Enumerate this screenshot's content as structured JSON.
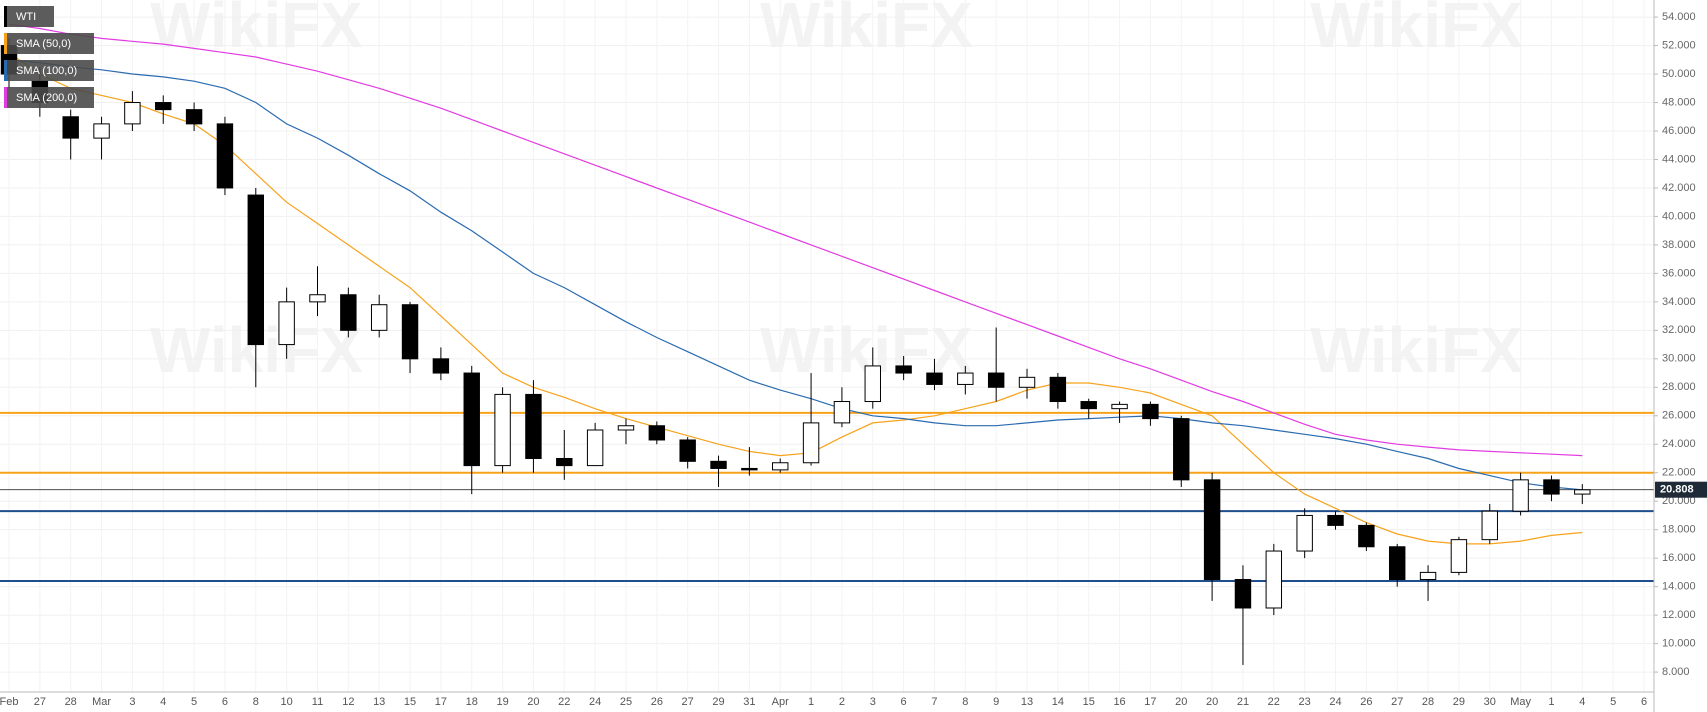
{
  "chart_data": {
    "type": "candlestick",
    "watermark": "WikiFX",
    "categories": [
      "Feb",
      "27",
      "28",
      "Mar",
      "3",
      "4",
      "5",
      "6",
      "8",
      "10",
      "11",
      "12",
      "13",
      "15",
      "17",
      "18",
      "19",
      "20",
      "22",
      "24",
      "25",
      "26",
      "27",
      "29",
      "31",
      "Apr",
      "1",
      "2",
      "3",
      "6",
      "7",
      "8",
      "9",
      "13",
      "14",
      "15",
      "16",
      "17",
      "20",
      "20",
      "21",
      "22",
      "23",
      "24",
      "26",
      "27",
      "28",
      "29",
      "30",
      "May",
      "1",
      "4",
      "5",
      "6"
    ],
    "ohlc": {
      "name": "WTI",
      "color_up": "#ffffff",
      "color_down": "#000000",
      "open": [
        52,
        49.5,
        47,
        45.5,
        46.5,
        48,
        47.5,
        46.5,
        41.5,
        31,
        34,
        34.5,
        32,
        33.8,
        30,
        29,
        22.5,
        27.5,
        23,
        22.5,
        25,
        25.3,
        24.3,
        22.8,
        22.3,
        22.2,
        22.7,
        25.5,
        27,
        29.5,
        29,
        28.2,
        29,
        28,
        28.7,
        27,
        26.5,
        26.8,
        25.8,
        21.5,
        14.5,
        12.5,
        16.5,
        19,
        18.3,
        16.8,
        14.5,
        15,
        17.3,
        19.3,
        21.5,
        20.5,
        null,
        null
      ],
      "high": [
        52.5,
        50.5,
        47.5,
        47,
        48.8,
        48.5,
        48,
        47,
        42,
        35,
        36.5,
        35,
        34.5,
        34,
        30.8,
        29.5,
        28,
        28.5,
        25,
        25.5,
        25.8,
        25.6,
        24.5,
        23.2,
        23.8,
        23,
        29,
        28,
        30.8,
        30.2,
        30,
        29.5,
        32.2,
        29.3,
        29,
        27.2,
        27,
        27,
        26,
        22,
        15.5,
        17,
        19.5,
        19.3,
        18.5,
        17,
        15.5,
        17.5,
        19.8,
        22,
        21.8,
        21.2,
        null,
        null
      ],
      "low": [
        49,
        47,
        44,
        44,
        46,
        46.5,
        46,
        41.5,
        28,
        30,
        33,
        31.5,
        31.5,
        29,
        28.5,
        20.5,
        22,
        22,
        21.5,
        22.5,
        24,
        24,
        22.3,
        21,
        21.8,
        22,
        22.5,
        25.2,
        26.5,
        28.5,
        27.8,
        27.5,
        27,
        27.2,
        26.5,
        25.8,
        25.5,
        25.3,
        21,
        13,
        8.5,
        12,
        16,
        18,
        16.5,
        14,
        13,
        14.8,
        17,
        19,
        20,
        19.8,
        null,
        null
      ],
      "close": [
        50,
        48,
        45.5,
        46.5,
        48,
        47.5,
        46.5,
        42,
        31,
        34,
        34.5,
        32,
        33.8,
        30,
        29,
        22.5,
        27.5,
        23,
        22.5,
        25,
        25.3,
        24.3,
        22.8,
        22.3,
        22.2,
        22.7,
        25.5,
        27,
        29.5,
        29,
        28.2,
        29,
        28,
        28.7,
        27,
        26.5,
        26.8,
        25.8,
        21.5,
        14.5,
        12.5,
        16.5,
        19,
        18.3,
        16.8,
        14.5,
        15,
        17.3,
        19.3,
        21.5,
        20.5,
        20.8,
        null,
        null
      ]
    },
    "series": [
      {
        "name": "SMA (50,0)",
        "color": "#f7a21b",
        "values": [
          51.5,
          50,
          49,
          48.5,
          48,
          47.2,
          46.5,
          45,
          43,
          41,
          39.5,
          38,
          36.5,
          35,
          33,
          31,
          29,
          28,
          27.3,
          26.5,
          25.8,
          25.2,
          24.6,
          24,
          23.5,
          23.2,
          23.4,
          24.5,
          25.5,
          25.7,
          26,
          26.5,
          27,
          27.8,
          28.3,
          28.3,
          28,
          27.6,
          26.8,
          26,
          24,
          22,
          20.5,
          19.5,
          18.5,
          17.7,
          17.2,
          17,
          17,
          17.2,
          17.6,
          17.8,
          null,
          null
        ]
      },
      {
        "name": "SMA (100,0)",
        "color": "#2a6bb0",
        "values": [
          51,
          50.8,
          50.5,
          50.3,
          50,
          49.8,
          49.5,
          49,
          48,
          46.5,
          45.5,
          44.3,
          43,
          41.8,
          40.3,
          39,
          37.5,
          36,
          35,
          33.8,
          32.6,
          31.5,
          30.5,
          29.5,
          28.5,
          27.8,
          27.2,
          26.5,
          26,
          25.8,
          25.5,
          25.3,
          25.3,
          25.5,
          25.7,
          25.8,
          25.9,
          26,
          25.8,
          25.5,
          25.3,
          25,
          24.7,
          24.4,
          24,
          23.5,
          23,
          22.3,
          21.8,
          21.3,
          21,
          20.8,
          null,
          null
        ]
      },
      {
        "name": "SMA (200,0)",
        "color": "#e23be2",
        "values": [
          53.5,
          53.2,
          52.8,
          52.5,
          52.3,
          52.1,
          51.8,
          51.5,
          51.2,
          50.7,
          50.2,
          49.6,
          49,
          48.3,
          47.6,
          46.8,
          46,
          45.2,
          44.4,
          43.6,
          42.8,
          42,
          41.2,
          40.4,
          39.6,
          38.8,
          38,
          37.2,
          36.4,
          35.6,
          34.8,
          34,
          33.2,
          32.4,
          31.6,
          30.8,
          30,
          29.3,
          28.5,
          27.7,
          27,
          26.2,
          25.4,
          24.7,
          24.3,
          24,
          23.8,
          23.6,
          23.5,
          23.4,
          23.3,
          23.2,
          null,
          null
        ]
      }
    ],
    "levels": [
      {
        "value": 26.2,
        "color": "#f7a21b"
      },
      {
        "value": 22.0,
        "color": "#f7a21b"
      },
      {
        "value": 19.3,
        "color": "#1f4e8c"
      },
      {
        "value": 14.4,
        "color": "#1f4e8c"
      }
    ],
    "last_price": 20.808,
    "ylim": [
      6.6,
      55.2
    ],
    "yticks": [
      {
        "value": 8,
        "label": "8.000"
      },
      {
        "value": 10,
        "label": "10.000"
      },
      {
        "value": 12,
        "label": "12.000"
      },
      {
        "value": 14,
        "label": "14.000"
      },
      {
        "value": 16,
        "label": "16.000"
      },
      {
        "value": 18,
        "label": "18.000"
      },
      {
        "value": 20,
        "label": "20.000"
      },
      {
        "value": 22,
        "label": "22.000"
      },
      {
        "value": 24,
        "label": "24.000"
      },
      {
        "value": 26,
        "label": "26.000"
      },
      {
        "value": 28,
        "label": "28.000"
      },
      {
        "value": 30,
        "label": "30.000"
      },
      {
        "value": 32,
        "label": "32.000"
      },
      {
        "value": 34,
        "label": "34.000"
      },
      {
        "value": 36,
        "label": "36.000"
      },
      {
        "value": 38,
        "label": "38.000"
      },
      {
        "value": 40,
        "label": "40.000"
      },
      {
        "value": 42,
        "label": "42.000"
      },
      {
        "value": 44,
        "label": "44.000"
      },
      {
        "value": 46,
        "label": "46.000"
      },
      {
        "value": 48,
        "label": "48.000"
      },
      {
        "value": 50,
        "label": "50.000"
      },
      {
        "value": 52,
        "label": "52.000"
      },
      {
        "value": 54,
        "label": "54.000"
      }
    ],
    "grid": true
  }
}
